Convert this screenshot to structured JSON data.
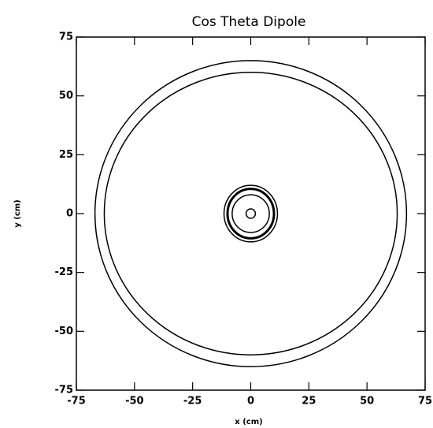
{
  "chart_data": {
    "type": "ellipses",
    "title": "Cos Theta Dipole",
    "xlabel": "x (cm)",
    "ylabel": "y (cm)",
    "xlim": [
      -75,
      75
    ],
    "ylim": [
      -75,
      75
    ],
    "xticks": [
      -75,
      -50,
      -25,
      0,
      25,
      50,
      75
    ],
    "yticks": [
      -75,
      -50,
      -25,
      0,
      25,
      50,
      75
    ],
    "color": "#000000",
    "shapes": [
      {
        "cx": 0,
        "cy": 0,
        "rx": 67,
        "ry": 65
      },
      {
        "cx": 0,
        "cy": 0,
        "rx": 63,
        "ry": 60
      },
      {
        "cx": 0,
        "cy": 0,
        "rx": 11.5,
        "ry": 12
      },
      {
        "cx": 0,
        "cy": 0,
        "rx": 10,
        "ry": 10.5
      },
      {
        "cx": 0,
        "cy": 0,
        "rx": 8,
        "ry": 8
      },
      {
        "cx": 0,
        "cy": 0,
        "rx": 2,
        "ry": 2
      }
    ]
  }
}
